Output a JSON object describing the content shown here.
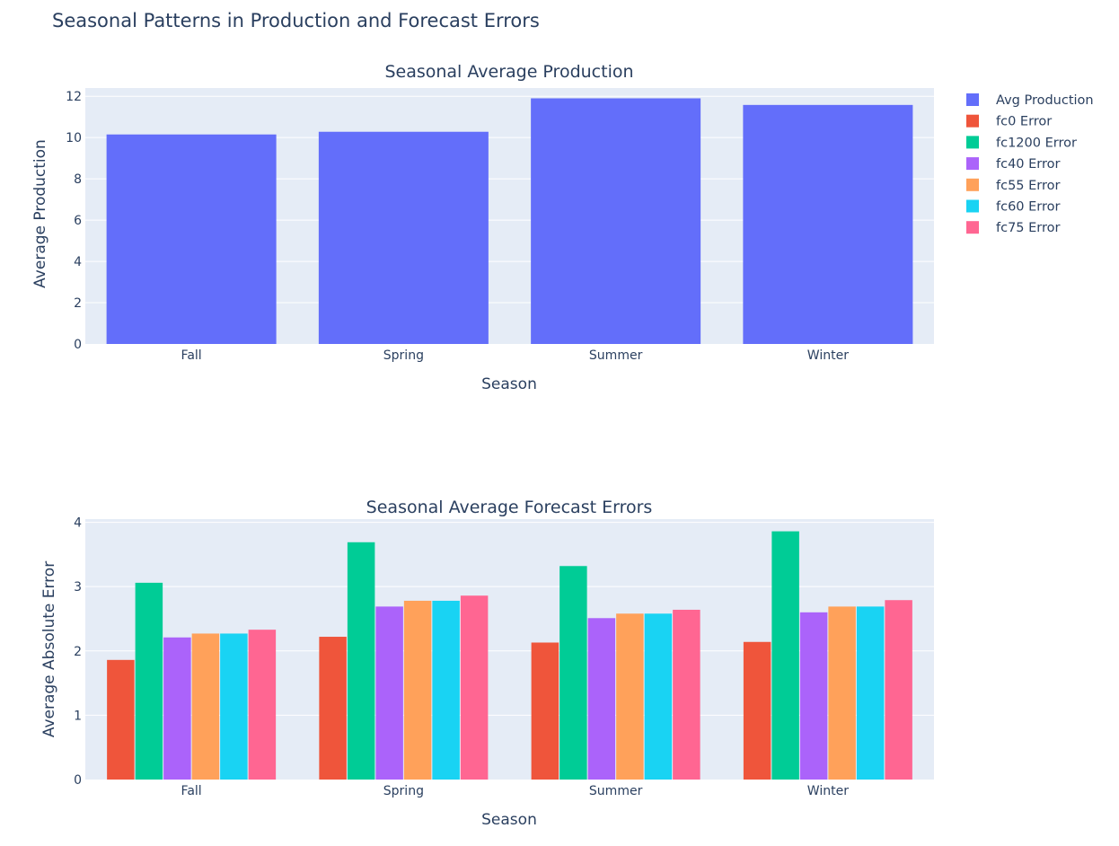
{
  "figure": {
    "title": "Seasonal Patterns in Production and Forecast Errors"
  },
  "chart_data": [
    {
      "type": "bar",
      "title": "Seasonal Average Production",
      "xlabel": "Season",
      "ylabel": "Average Production",
      "categories": [
        "Fall",
        "Spring",
        "Summer",
        "Winter"
      ],
      "ylim": [
        0,
        12.4
      ],
      "yticks": [
        0,
        2,
        4,
        6,
        8,
        10,
        12
      ],
      "grid": true,
      "series": [
        {
          "name": "Avg Production",
          "color": "#636efa",
          "values": [
            10.15,
            10.28,
            11.9,
            11.58
          ]
        }
      ]
    },
    {
      "type": "bar",
      "title": "Seasonal Average Forecast Errors",
      "xlabel": "Season",
      "ylabel": "Average Absolute Error",
      "categories": [
        "Fall",
        "Spring",
        "Summer",
        "Winter"
      ],
      "ylim": [
        0,
        4.05
      ],
      "yticks": [
        0,
        1,
        2,
        3,
        4
      ],
      "grid": true,
      "series": [
        {
          "name": "fc0 Error",
          "color": "#ef553b",
          "values": [
            1.86,
            2.22,
            2.13,
            2.14
          ]
        },
        {
          "name": "fc1200 Error",
          "color": "#00cc96",
          "values": [
            3.06,
            3.69,
            3.32,
            3.86
          ]
        },
        {
          "name": "fc40 Error",
          "color": "#ab63fa",
          "values": [
            2.21,
            2.69,
            2.51,
            2.6
          ]
        },
        {
          "name": "fc55 Error",
          "color": "#ffa15a",
          "values": [
            2.27,
            2.78,
            2.58,
            2.69
          ]
        },
        {
          "name": "fc60 Error",
          "color": "#19d3f3",
          "values": [
            2.27,
            2.78,
            2.58,
            2.69
          ]
        },
        {
          "name": "fc75 Error",
          "color": "#ff6692",
          "values": [
            2.33,
            2.86,
            2.64,
            2.79
          ]
        }
      ]
    }
  ],
  "legend": {
    "placement": "right",
    "items": [
      {
        "label": "Avg Production",
        "color": "#636efa"
      },
      {
        "label": "fc0 Error",
        "color": "#ef553b"
      },
      {
        "label": "fc1200 Error",
        "color": "#00cc96"
      },
      {
        "label": "fc40 Error",
        "color": "#ab63fa"
      },
      {
        "label": "fc55 Error",
        "color": "#ffa15a"
      },
      {
        "label": "fc60 Error",
        "color": "#19d3f3"
      },
      {
        "label": "fc75 Error",
        "color": "#ff6692"
      }
    ]
  },
  "colors": {
    "plot_bg": "#e5ecf6",
    "grid": "#ffffff",
    "text": "#2a3f5f"
  }
}
